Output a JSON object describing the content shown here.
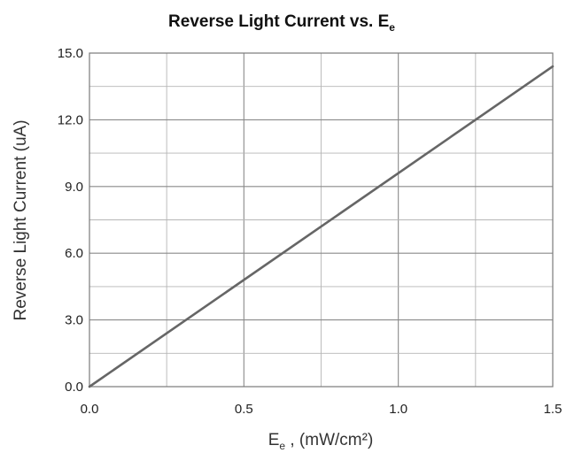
{
  "chart_data": {
    "type": "line",
    "title": {
      "main": "Reverse Light Current vs. E",
      "sub": "e"
    },
    "xlabel": {
      "main": "E",
      "sub": "e",
      "rest": " , (mW/cm²)"
    },
    "ylabel": "Reverse Light Current (uA)",
    "xlim": [
      0.0,
      1.5
    ],
    "ylim": [
      0.0,
      15.0
    ],
    "x_ticks": [
      "0.0",
      "0.5",
      "1.0",
      "1.5"
    ],
    "y_ticks": [
      "0.0",
      "3.0",
      "6.0",
      "9.0",
      "12.0",
      "15.0"
    ],
    "grid": true,
    "series": [
      {
        "x": [
          0.0,
          1.5
        ],
        "y": [
          0.0,
          14.4
        ],
        "color": "#666666"
      }
    ]
  }
}
